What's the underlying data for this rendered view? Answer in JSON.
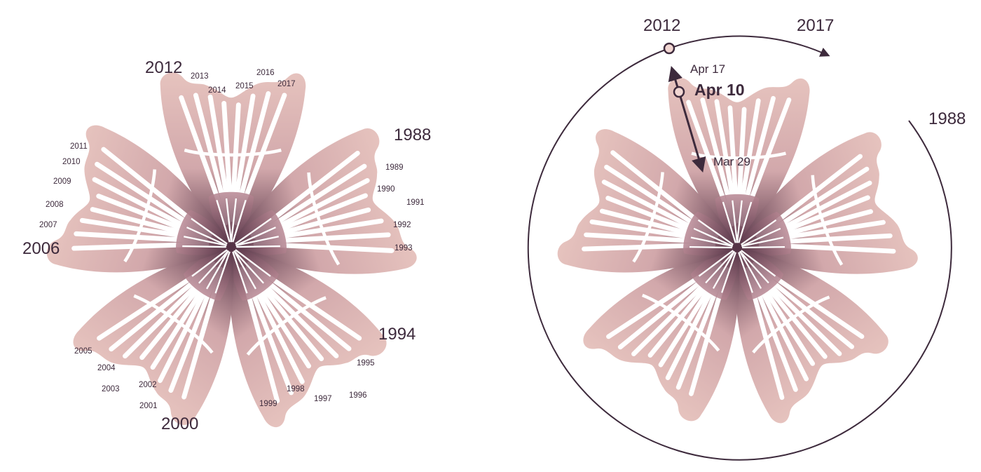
{
  "left_flower": {
    "major_labels": [
      "2012",
      "1988",
      "2006",
      "1994",
      "2000"
    ],
    "minor_labels": [
      "2013",
      "2014",
      "2015",
      "2016",
      "2017",
      "1989",
      "1990",
      "1991",
      "1992",
      "1993",
      "1995",
      "1996",
      "1997",
      "1998",
      "1999",
      "2001",
      "2002",
      "2003",
      "2004",
      "2005",
      "2007",
      "2008",
      "2009",
      "2010",
      "2011"
    ]
  },
  "right_flower": {
    "arc_labels": {
      "start": "2012",
      "end": "2017",
      "outer": "1988"
    },
    "marker_labels": {
      "upper": "Apr 17",
      "current": "Apr 10",
      "lower": "Mar 29"
    }
  },
  "colors": {
    "petal_light": "#e6c3be",
    "petal_mid": "#b98894",
    "petal_dark": "#553346",
    "text": "#3d2a3c",
    "marker_fill": "#f1d6d2"
  }
}
